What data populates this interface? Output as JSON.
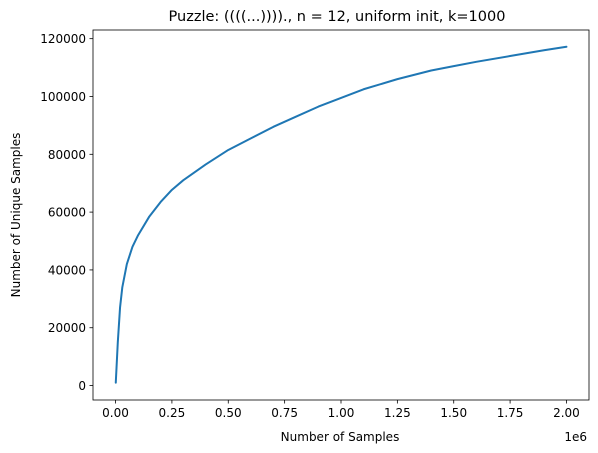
{
  "chart_data": {
    "type": "line",
    "title": "Puzzle: ((((...))))., n = 12, uniform init, k=1000",
    "xlabel": "Number of Samples",
    "ylabel": "Number of Unique Samples",
    "x_offset_text": "1e6",
    "xlim": [
      -0.1,
      2.1
    ],
    "ylim": [
      -5000,
      123000
    ],
    "x_ticks": [
      0.0,
      0.25,
      0.5,
      0.75,
      1.0,
      1.25,
      1.5,
      1.75,
      2.0
    ],
    "x_tick_labels": [
      "0.00",
      "0.25",
      "0.50",
      "0.75",
      "1.00",
      "1.25",
      "1.50",
      "1.75",
      "2.00"
    ],
    "y_ticks": [
      0,
      20000,
      40000,
      60000,
      80000,
      100000,
      120000
    ],
    "y_tick_labels": [
      "0",
      "20000",
      "40000",
      "60000",
      "80000",
      "100000",
      "120000"
    ],
    "grid": false,
    "series": [
      {
        "color": "#1f77b4",
        "x": [
          0.001,
          0.01,
          0.02,
          0.03,
          0.05,
          0.075,
          0.1,
          0.15,
          0.2,
          0.25,
          0.3,
          0.4,
          0.5,
          0.6,
          0.7,
          0.8,
          0.9,
          1.0,
          1.1,
          1.25,
          1.4,
          1.5,
          1.6,
          1.75,
          1.9,
          2.0
        ],
        "y": [
          1000,
          15000,
          27000,
          34000,
          42000,
          48000,
          52000,
          58500,
          63500,
          67700,
          71000,
          76500,
          81500,
          85500,
          89500,
          93000,
          96500,
          99500,
          102500,
          106000,
          109000,
          110500,
          112000,
          114000,
          116000,
          117200
        ]
      }
    ]
  }
}
